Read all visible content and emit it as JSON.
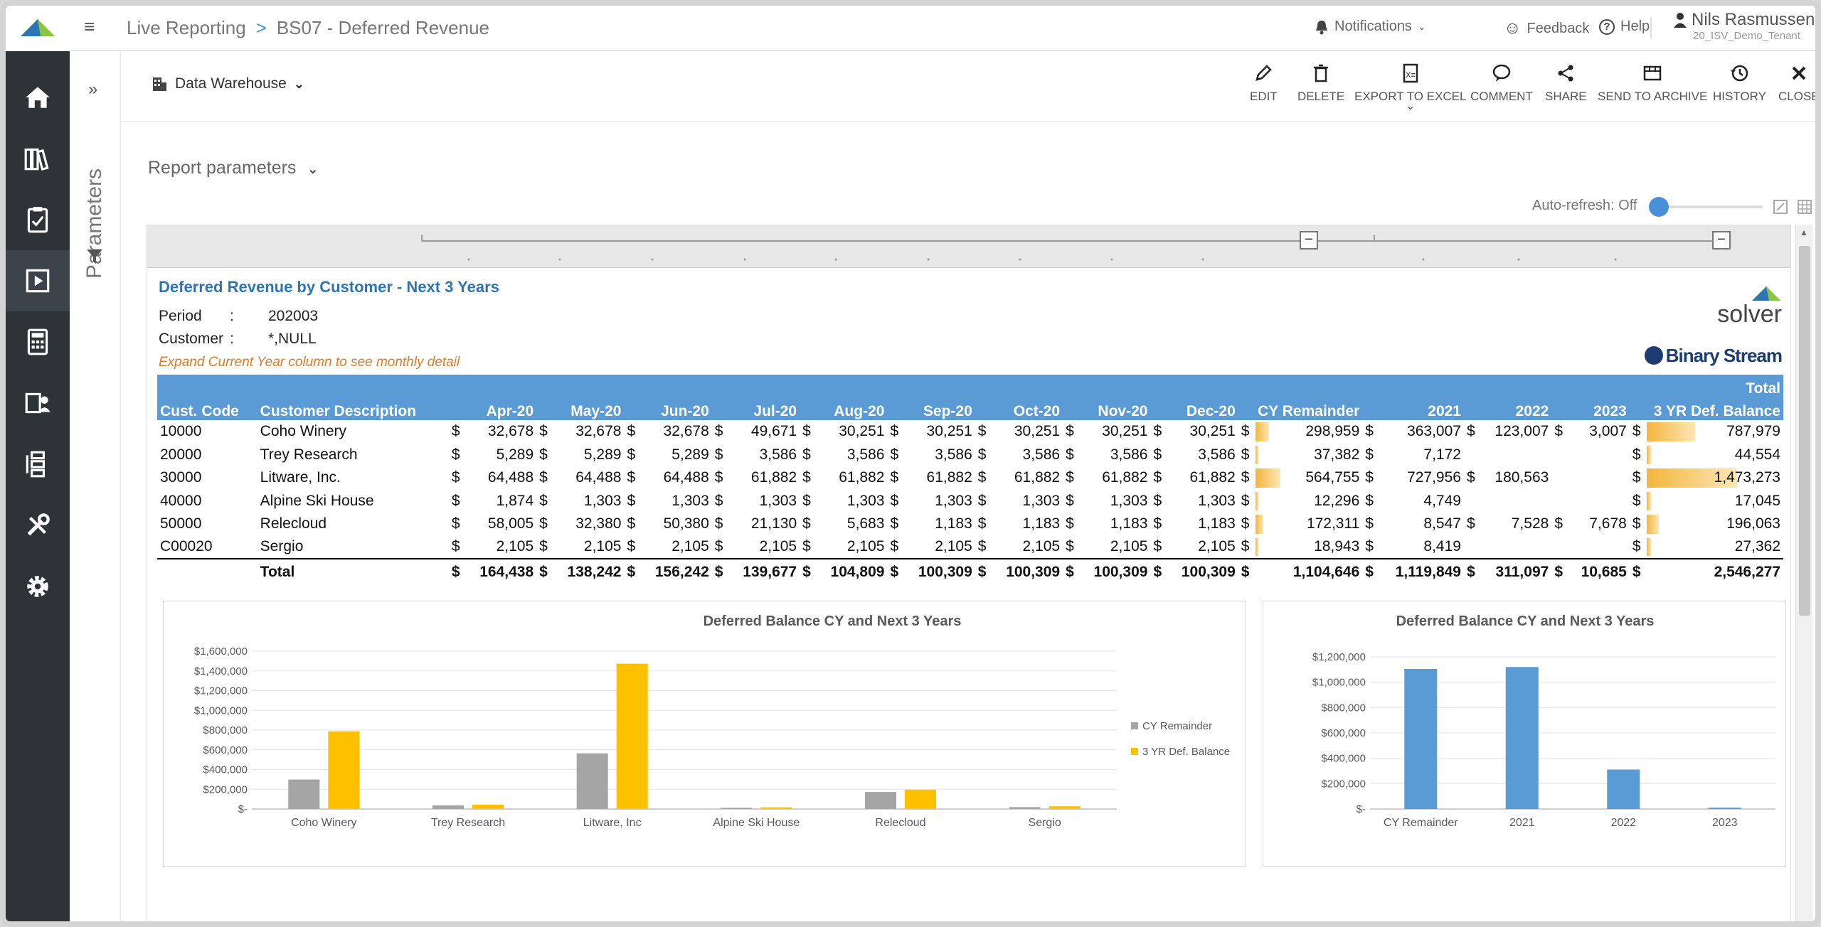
{
  "topbar": {
    "menu_icon": "hamburger-icon",
    "crumb_root": "Live Reporting",
    "crumb_sep": ">",
    "crumb_page": "BS07 - Deferred Revenue",
    "notifications": "Notifications",
    "feedback": "Feedback",
    "help": "Help",
    "user_name": "Nils Rasmussen",
    "tenant": "20_ISV_Demo_Tenant"
  },
  "nav": {
    "items": [
      "home-icon",
      "library-icon",
      "clipboard-icon",
      "report-icon",
      "calculator-icon",
      "user-doc-icon",
      "process-icon",
      "tools-icon",
      "settings-icon"
    ],
    "active_index": 3
  },
  "params_strip": {
    "label": "Parameters",
    "expand": "»"
  },
  "toolbar": {
    "source": "Data Warehouse",
    "buttons": [
      "EDIT",
      "DELETE",
      "EXPORT TO EXCEL",
      "COMMENT",
      "SHARE",
      "SEND TO ARCHIVE",
      "HISTORY",
      "CLOSE"
    ]
  },
  "report_params": "Report parameters",
  "auto_refresh": "Auto-refresh: Off",
  "report": {
    "title": "Deferred Revenue by Customer - Next 3 Years",
    "period_label": "Period",
    "period_value": "202003",
    "customer_label": "Customer",
    "customer_value": "*,NULL",
    "colon": ":",
    "note": "Expand Current Year column to see monthly detail",
    "brand_solver": "solver",
    "brand_bs": "Binary Stream",
    "headers": [
      "Cust. Code",
      "Customer Description",
      "Apr-20",
      "May-20",
      "Jun-20",
      "Jul-20",
      "Aug-20",
      "Sep-20",
      "Oct-20",
      "Nov-20",
      "Dec-20",
      "CY Remainder",
      "2021",
      "2022",
      "2023",
      "3 YR Def. Balance"
    ],
    "header_total_top": "Total",
    "currency": "$",
    "rows": [
      {
        "code": "10000",
        "desc": "Coho Winery",
        "m": [
          "32,678",
          "32,678",
          "32,678",
          "49,671",
          "30,251",
          "30,251",
          "30,251",
          "30,251",
          "30,251"
        ],
        "cy": "298,959",
        "y2021": "363,007",
        "y2022": "123,007",
        "y2023": "3,007",
        "total": "787,979"
      },
      {
        "code": "20000",
        "desc": "Trey Research",
        "m": [
          "5,289",
          "5,289",
          "5,289",
          "3,586",
          "3,586",
          "3,586",
          "3,586",
          "3,586",
          "3,586"
        ],
        "cy": "37,382",
        "y2021": "7,172",
        "y2022": "",
        "y2023": "",
        "total": "44,554"
      },
      {
        "code": "30000",
        "desc": "Litware, Inc.",
        "m": [
          "64,488",
          "64,488",
          "64,488",
          "61,882",
          "61,882",
          "61,882",
          "61,882",
          "61,882",
          "61,882"
        ],
        "cy": "564,755",
        "y2021": "727,956",
        "y2022": "180,563",
        "y2023": "",
        "total": "1,473,273"
      },
      {
        "code": "40000",
        "desc": "Alpine Ski House",
        "m": [
          "1,874",
          "1,303",
          "1,303",
          "1,303",
          "1,303",
          "1,303",
          "1,303",
          "1,303",
          "1,303"
        ],
        "cy": "12,296",
        "y2021": "4,749",
        "y2022": "",
        "y2023": "",
        "total": "17,045"
      },
      {
        "code": "50000",
        "desc": "Relecloud",
        "m": [
          "58,005",
          "32,380",
          "50,380",
          "21,130",
          "5,683",
          "1,183",
          "1,183",
          "1,183",
          "1,183"
        ],
        "cy": "172,311",
        "y2021": "8,547",
        "y2022": "7,528",
        "y2023": "7,678",
        "total": "196,063"
      },
      {
        "code": "C00020",
        "desc": "Sergio",
        "m": [
          "2,105",
          "2,105",
          "2,105",
          "2,105",
          "2,105",
          "2,105",
          "2,105",
          "2,105",
          "2,105"
        ],
        "cy": "18,943",
        "y2021": "8,419",
        "y2022": "",
        "y2023": "",
        "total": "27,362"
      }
    ],
    "total_row": {
      "label": "Total",
      "m": [
        "164,438",
        "138,242",
        "156,242",
        "139,677",
        "104,809",
        "100,309",
        "100,309",
        "100,309",
        "100,309"
      ],
      "cy": "1,104,646",
      "y2021": "1,119,849",
      "y2022": "311,097",
      "y2023": "10,685",
      "total": "2,546,277"
    }
  },
  "colors": {
    "accent": "#5b9bd5",
    "gray": "#a5a5a5",
    "gold": "#ffc000",
    "title_blue": "#2e75b6",
    "note_orange": "#e07b28"
  },
  "chart_data": [
    {
      "type": "bar",
      "title": "Deferred Balance CY and Next 3 Years",
      "categories": [
        "Coho Winery",
        "Trey Research",
        "Litware, Inc",
        "Alpine Ski House",
        "Relecloud",
        "Sergio"
      ],
      "series": [
        {
          "name": "CY Remainder",
          "color": "#a5a5a5",
          "values": [
            298959,
            37382,
            564755,
            12296,
            172311,
            18943
          ]
        },
        {
          "name": "3 YR Def. Balance",
          "color": "#ffc000",
          "values": [
            787979,
            44554,
            1473273,
            17045,
            196063,
            27362
          ]
        }
      ],
      "yticks": [
        "$-",
        "$200,000",
        "$400,000",
        "$600,000",
        "$800,000",
        "$1,000,000",
        "$1,200,000",
        "$1,400,000",
        "$1,600,000"
      ],
      "ylim": [
        0,
        1600000
      ],
      "legend": "right"
    },
    {
      "type": "bar",
      "title": "Deferred Balance CY and Next 3 Years",
      "categories": [
        "CY Remainder",
        "2021",
        "2022",
        "2023"
      ],
      "series": [
        {
          "color": "#5b9bd5",
          "values": [
            1104646,
            1119849,
            311097,
            10685
          ]
        }
      ],
      "yticks": [
        "$-",
        "$200,000",
        "$400,000",
        "$600,000",
        "$800,000",
        "$1,000,000",
        "$1,200,000"
      ],
      "ylim": [
        0,
        1200000
      ]
    }
  ]
}
